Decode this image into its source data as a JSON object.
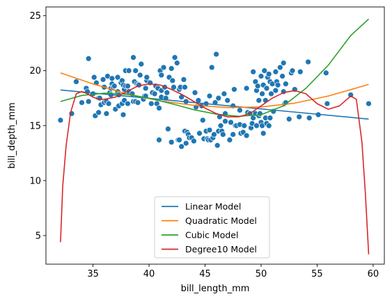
{
  "chart_data": {
    "type": "scatter",
    "xlabel": "bill_length_mm",
    "ylabel": "bill_depth_mm",
    "xlim": [
      30.8,
      61.0
    ],
    "ylim": [
      2.4,
      25.8
    ],
    "x_ticks": [
      35,
      40,
      45,
      50,
      55,
      60
    ],
    "y_ticks": [
      5,
      10,
      15,
      20,
      25
    ],
    "grid": false,
    "legend_position": "lower center",
    "colors": {
      "points": "#1f77b4",
      "Linear Model": "#1f77b4",
      "Quadratic Model": "#ff7f0e",
      "Cubic Model": "#2ca02c",
      "Degree10 Model": "#d62728"
    },
    "points": [
      [
        32.1,
        15.5
      ],
      [
        33.1,
        16.1
      ],
      [
        33.5,
        19.0
      ],
      [
        34.0,
        17.1
      ],
      [
        34.4,
        18.4
      ],
      [
        34.5,
        18.1
      ],
      [
        34.6,
        21.1
      ],
      [
        34.6,
        17.2
      ],
      [
        35.0,
        17.9
      ],
      [
        35.1,
        19.4
      ],
      [
        35.2,
        15.9
      ],
      [
        35.3,
        18.9
      ],
      [
        35.5,
        16.2
      ],
      [
        35.5,
        17.5
      ],
      [
        35.6,
        17.5
      ],
      [
        35.7,
        16.9
      ],
      [
        35.9,
        19.2
      ],
      [
        36.0,
        17.1
      ],
      [
        36.0,
        18.5
      ],
      [
        36.2,
        17.2
      ],
      [
        36.2,
        16.1
      ],
      [
        36.3,
        19.5
      ],
      [
        36.4,
        17.0
      ],
      [
        36.5,
        18.0
      ],
      [
        36.6,
        17.8
      ],
      [
        36.6,
        18.4
      ],
      [
        36.7,
        18.8
      ],
      [
        36.7,
        19.3
      ],
      [
        36.8,
        18.5
      ],
      [
        36.9,
        18.6
      ],
      [
        37.0,
        16.5
      ],
      [
        37.2,
        18.1
      ],
      [
        37.2,
        19.4
      ],
      [
        37.3,
        17.8
      ],
      [
        37.3,
        16.8
      ],
      [
        37.5,
        18.9
      ],
      [
        37.6,
        19.1
      ],
      [
        37.6,
        17.0
      ],
      [
        37.7,
        18.7
      ],
      [
        37.7,
        16.0
      ],
      [
        37.8,
        18.3
      ],
      [
        37.8,
        17.3
      ],
      [
        37.9,
        18.6
      ],
      [
        37.9,
        20.0
      ],
      [
        38.1,
        18.6
      ],
      [
        38.1,
        17.0
      ],
      [
        38.2,
        18.1
      ],
      [
        38.2,
        20.0
      ],
      [
        38.5,
        17.9
      ],
      [
        38.6,
        21.2
      ],
      [
        38.6,
        17.2
      ],
      [
        38.7,
        19.0
      ],
      [
        38.8,
        17.2
      ],
      [
        38.8,
        20.0
      ],
      [
        38.9,
        18.8
      ],
      [
        39.0,
        17.1
      ],
      [
        39.0,
        18.7
      ],
      [
        39.1,
        18.7
      ],
      [
        39.2,
        19.6
      ],
      [
        39.3,
        20.6
      ],
      [
        39.5,
        17.4
      ],
      [
        39.6,
        17.7
      ],
      [
        39.7,
        18.4
      ],
      [
        39.7,
        17.7
      ],
      [
        39.8,
        19.1
      ],
      [
        39.8,
        19.4
      ],
      [
        40.1,
        18.9
      ],
      [
        40.2,
        17.0
      ],
      [
        40.3,
        18.0
      ],
      [
        40.5,
        17.9
      ],
      [
        40.6,
        18.6
      ],
      [
        40.7,
        17.0
      ],
      [
        40.8,
        18.4
      ],
      [
        40.9,
        16.6
      ],
      [
        41.0,
        20.0
      ],
      [
        41.1,
        19.6
      ],
      [
        41.1,
        17.6
      ],
      [
        41.1,
        18.2
      ],
      [
        41.3,
        20.3
      ],
      [
        41.4,
        18.5
      ],
      [
        41.5,
        17.5
      ],
      [
        41.6,
        18.0
      ],
      [
        41.8,
        19.4
      ],
      [
        42.0,
        20.2
      ],
      [
        42.1,
        19.1
      ],
      [
        42.2,
        18.5
      ],
      [
        42.3,
        21.2
      ],
      [
        42.5,
        20.7
      ],
      [
        42.7,
        18.3
      ],
      [
        42.8,
        18.5
      ],
      [
        42.9,
        17.6
      ],
      [
        43.1,
        19.2
      ],
      [
        43.2,
        18.5
      ],
      [
        43.3,
        17.2
      ],
      [
        44.1,
        18.0
      ],
      [
        45.6,
        20.3
      ],
      [
        46.0,
        21.5
      ],
      [
        40.9,
        13.7
      ],
      [
        41.7,
        14.7
      ],
      [
        42.0,
        13.5
      ],
      [
        42.6,
        13.7
      ],
      [
        42.7,
        13.7
      ],
      [
        42.9,
        13.1
      ],
      [
        43.2,
        14.5
      ],
      [
        43.3,
        13.4
      ],
      [
        43.4,
        14.4
      ],
      [
        43.5,
        14.2
      ],
      [
        43.6,
        13.9
      ],
      [
        43.8,
        13.9
      ],
      [
        44.0,
        13.6
      ],
      [
        44.4,
        17.3
      ],
      [
        44.5,
        14.3
      ],
      [
        44.9,
        13.8
      ],
      [
        45.1,
        14.5
      ],
      [
        45.2,
        13.8
      ],
      [
        45.3,
        13.7
      ],
      [
        45.4,
        14.6
      ],
      [
        45.5,
        13.7
      ],
      [
        45.7,
        13.9
      ],
      [
        45.8,
        14.2
      ],
      [
        46.1,
        13.2
      ],
      [
        46.2,
        14.5
      ],
      [
        46.3,
        15.8
      ],
      [
        46.4,
        15.0
      ],
      [
        46.5,
        14.5
      ],
      [
        46.6,
        14.2
      ],
      [
        46.8,
        15.4
      ],
      [
        47.0,
        17.3
      ],
      [
        47.2,
        13.7
      ],
      [
        47.3,
        15.3
      ],
      [
        47.5,
        14.2
      ],
      [
        47.7,
        15.0
      ],
      [
        47.8,
        15.0
      ],
      [
        48.1,
        15.1
      ],
      [
        48.2,
        14.3
      ],
      [
        48.4,
        14.4
      ],
      [
        48.5,
        15.0
      ],
      [
        48.7,
        14.1
      ],
      [
        48.8,
        16.2
      ],
      [
        49.0,
        16.1
      ],
      [
        49.1,
        14.8
      ],
      [
        49.2,
        15.2
      ],
      [
        49.3,
        15.7
      ],
      [
        49.5,
        16.1
      ],
      [
        49.6,
        15.0
      ],
      [
        49.8,
        15.9
      ],
      [
        50.0,
        15.3
      ],
      [
        50.1,
        15.0
      ],
      [
        50.2,
        14.3
      ],
      [
        50.4,
        15.7
      ],
      [
        50.5,
        15.2
      ],
      [
        50.7,
        15.0
      ],
      [
        50.8,
        15.7
      ],
      [
        51.1,
        16.3
      ],
      [
        52.1,
        17.0
      ],
      [
        52.2,
        17.1
      ],
      [
        52.5,
        15.6
      ],
      [
        53.4,
        15.8
      ],
      [
        54.3,
        15.7
      ],
      [
        55.1,
        16.0
      ],
      [
        55.9,
        17.0
      ],
      [
        59.6,
        17.0
      ],
      [
        44.2,
        16.7
      ],
      [
        44.7,
        16.8
      ],
      [
        44.8,
        15.5
      ],
      [
        45.1,
        17.0
      ],
      [
        45.4,
        17.7
      ],
      [
        45.9,
        17.1
      ],
      [
        46.2,
        17.5
      ],
      [
        46.7,
        17.9
      ],
      [
        46.8,
        16.1
      ],
      [
        47.5,
        16.8
      ],
      [
        47.6,
        18.3
      ],
      [
        48.1,
        16.4
      ],
      [
        48.7,
        18.4
      ],
      [
        49.3,
        19.9
      ],
      [
        49.5,
        19.0
      ],
      [
        49.6,
        18.2
      ],
      [
        49.7,
        18.6
      ],
      [
        49.8,
        17.3
      ],
      [
        50.0,
        19.5
      ],
      [
        50.1,
        17.9
      ],
      [
        50.2,
        18.7
      ],
      [
        50.3,
        20.0
      ],
      [
        50.5,
        18.4
      ],
      [
        50.6,
        19.4
      ],
      [
        50.7,
        19.7
      ],
      [
        50.8,
        19.0
      ],
      [
        50.9,
        17.9
      ],
      [
        51.0,
        18.8
      ],
      [
        51.3,
        19.9
      ],
      [
        51.4,
        19.0
      ],
      [
        51.5,
        18.7
      ],
      [
        51.7,
        20.3
      ],
      [
        51.9,
        19.5
      ],
      [
        52.0,
        18.1
      ],
      [
        52.0,
        20.7
      ],
      [
        52.7,
        19.8
      ],
      [
        52.8,
        20.0
      ],
      [
        53.5,
        19.9
      ],
      [
        54.2,
        20.8
      ],
      [
        55.8,
        19.8
      ],
      [
        58.0,
        17.8
      ],
      [
        49.9,
        16.1
      ],
      [
        50.4,
        17.3
      ],
      [
        51.3,
        18.2
      ],
      [
        52.2,
        18.8
      ],
      [
        53.0,
        18.3
      ]
    ],
    "series": [
      {
        "name": "Linear Model",
        "x": [
          32.1,
          59.6
        ],
        "y": [
          18.25,
          15.6
        ]
      },
      {
        "name": "Quadratic Model",
        "x": [
          32.1,
          35,
          38,
          41,
          44,
          47,
          50,
          53,
          56,
          59.6
        ],
        "y": [
          19.8,
          18.8,
          17.9,
          17.25,
          16.85,
          16.65,
          16.7,
          17.05,
          17.7,
          18.75
        ]
      },
      {
        "name": "Cubic Model",
        "x": [
          32.1,
          34,
          36,
          38,
          40,
          42,
          44,
          46,
          48,
          50,
          52,
          54,
          56,
          58,
          59.6
        ],
        "y": [
          17.2,
          17.75,
          17.95,
          17.85,
          17.5,
          17.0,
          16.45,
          16.05,
          15.85,
          16.0,
          16.8,
          18.4,
          20.5,
          23.2,
          24.7
        ]
      },
      {
        "name": "Degree10 Model",
        "x": [
          32.1,
          32.3,
          32.6,
          33.0,
          33.5,
          34.0,
          34.5,
          35.0,
          35.5,
          36.0,
          37.0,
          38.0,
          39.0,
          40.0,
          41.0,
          42.0,
          43.0,
          44.0,
          45.0,
          46.0,
          47.0,
          48.0,
          49.0,
          50.0,
          51.0,
          52.0,
          53.0,
          54.0,
          55.0,
          56.0,
          57.0,
          58.0,
          58.5,
          59.0,
          59.3,
          59.6
        ],
        "y": [
          4.4,
          9.5,
          13.2,
          16.2,
          17.9,
          18.1,
          17.9,
          17.6,
          17.4,
          17.4,
          17.6,
          18.1,
          18.6,
          18.8,
          18.7,
          18.3,
          17.8,
          17.2,
          16.6,
          16.1,
          15.8,
          15.8,
          16.1,
          16.8,
          17.5,
          18.0,
          18.2,
          17.9,
          17.0,
          16.5,
          16.8,
          17.7,
          17.4,
          13.5,
          9.0,
          3.3
        ]
      }
    ]
  }
}
